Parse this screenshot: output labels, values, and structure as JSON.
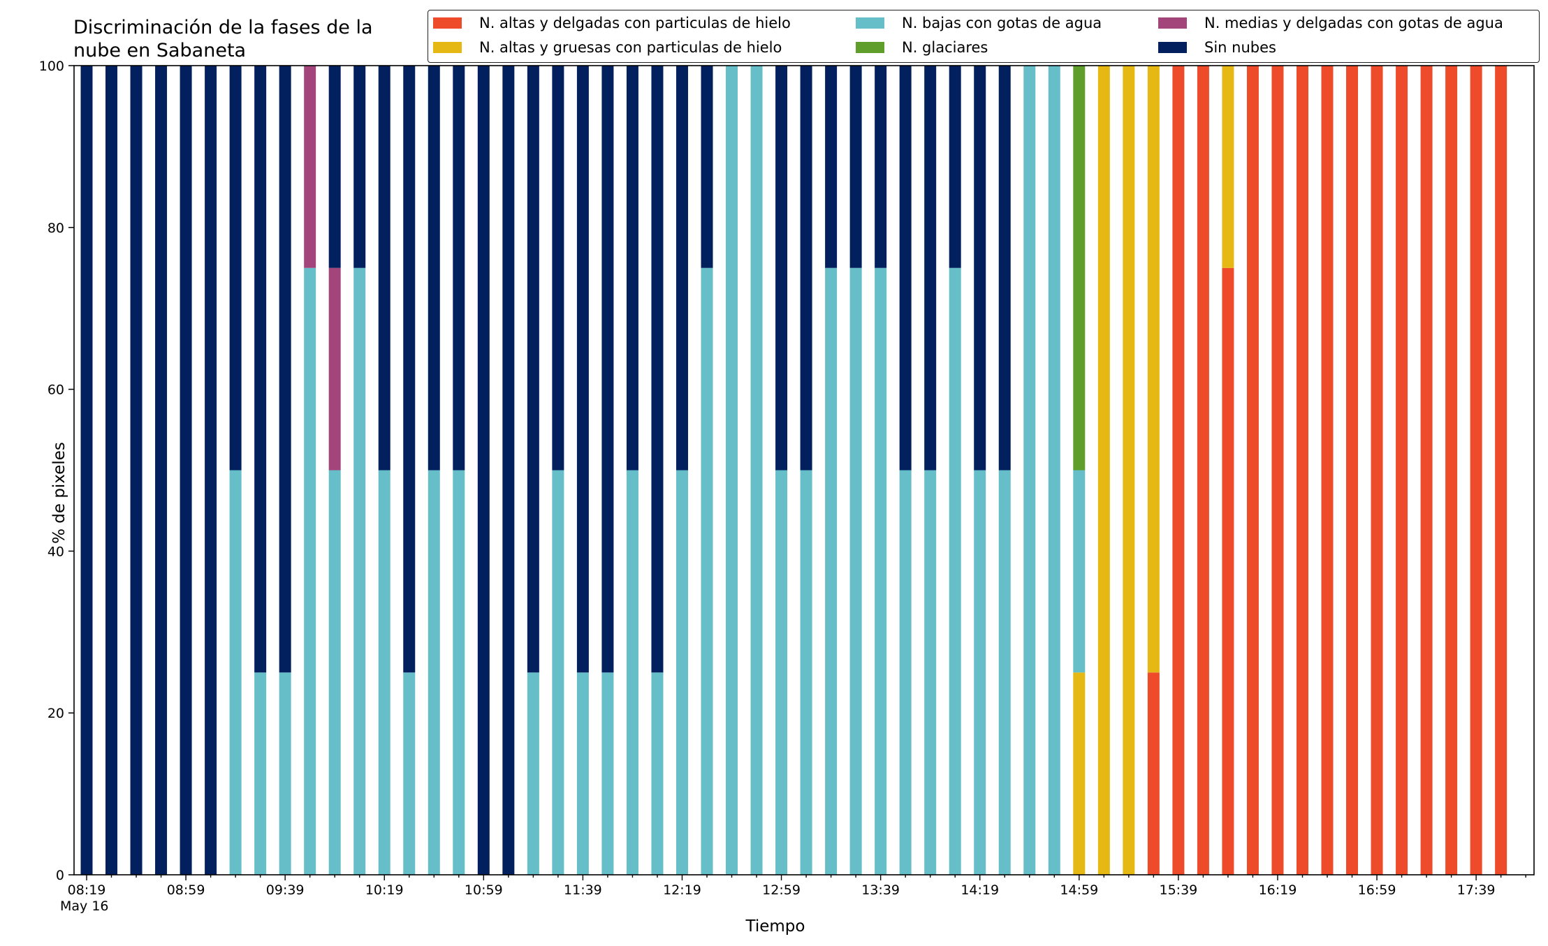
{
  "chart_data": {
    "type": "bar",
    "stacked": true,
    "title": "Discriminación de la fases de la nube en Sabaneta",
    "title_lines": [
      "Discriminación de la fases de la",
      "nube en Sabaneta"
    ],
    "xlabel": "Tiempo",
    "ylabel": "% de pixeles",
    "ylim": [
      0,
      100
    ],
    "yticks": [
      0,
      20,
      40,
      60,
      80,
      100
    ],
    "grid": false,
    "legend_position": "top-right",
    "x_start": "08:19",
    "x_step_minutes": 10,
    "x_tick_labels": [
      "08:19",
      "08:59",
      "09:39",
      "10:19",
      "10:59",
      "11:39",
      "12:19",
      "12:59",
      "13:39",
      "14:19",
      "14:59",
      "15:39",
      "16:19",
      "16:59",
      "17:39"
    ],
    "x_tick_sublabel": "May 16",
    "categories": [
      "08:19",
      "08:29",
      "08:39",
      "08:49",
      "08:59",
      "09:09",
      "09:19",
      "09:29",
      "09:39",
      "09:49",
      "09:59",
      "10:09",
      "10:19",
      "10:29",
      "10:39",
      "10:49",
      "10:59",
      "11:09",
      "11:19",
      "11:29",
      "11:39",
      "11:49",
      "11:59",
      "12:09",
      "12:19",
      "12:29",
      "12:39",
      "12:49",
      "12:59",
      "13:09",
      "13:19",
      "13:29",
      "13:39",
      "13:49",
      "13:59",
      "14:09",
      "14:19",
      "14:29",
      "14:39",
      "14:49",
      "14:59",
      "15:09",
      "15:19",
      "15:29",
      "15:39",
      "15:49",
      "15:59",
      "16:09",
      "16:19",
      "16:29",
      "16:39",
      "16:49",
      "16:59",
      "17:09",
      "17:19",
      "17:29",
      "17:39",
      "17:49"
    ],
    "series": [
      {
        "name": "N. altas y delgadas con particulas de hielo",
        "color": "#ee4b2b",
        "values": [
          0,
          0,
          0,
          0,
          0,
          0,
          0,
          0,
          0,
          0,
          0,
          0,
          0,
          0,
          0,
          0,
          0,
          0,
          0,
          0,
          0,
          0,
          0,
          0,
          0,
          0,
          0,
          0,
          0,
          0,
          0,
          0,
          0,
          0,
          0,
          0,
          0,
          0,
          0,
          0,
          0,
          0,
          0,
          25,
          100,
          100,
          75,
          100,
          100,
          100,
          100,
          100,
          100,
          100,
          100,
          100,
          100,
          100
        ]
      },
      {
        "name": "N. altas y gruesas con particulas de hielo",
        "color": "#e5b814",
        "values": [
          0,
          0,
          0,
          0,
          0,
          0,
          0,
          0,
          0,
          0,
          0,
          0,
          0,
          0,
          0,
          0,
          0,
          0,
          0,
          0,
          0,
          0,
          0,
          0,
          0,
          0,
          0,
          0,
          0,
          0,
          0,
          0,
          0,
          0,
          0,
          0,
          0,
          0,
          0,
          0,
          25,
          100,
          100,
          75,
          0,
          0,
          25,
          0,
          0,
          0,
          0,
          0,
          0,
          0,
          0,
          0,
          0,
          0
        ]
      },
      {
        "name": "N. bajas con gotas de agua",
        "color": "#66bec9",
        "values": [
          0,
          0,
          0,
          0,
          0,
          0,
          50,
          25,
          25,
          75,
          50,
          75,
          50,
          25,
          50,
          50,
          0,
          0,
          25,
          50,
          25,
          25,
          50,
          25,
          50,
          75,
          100,
          100,
          50,
          50,
          75,
          75,
          75,
          50,
          50,
          75,
          50,
          50,
          100,
          100,
          25,
          0,
          0,
          0,
          0,
          0,
          0,
          0,
          0,
          0,
          0,
          0,
          0,
          0,
          0,
          0,
          0,
          0
        ]
      },
      {
        "name": "N. glaciares",
        "color": "#5f9e2b",
        "values": [
          0,
          0,
          0,
          0,
          0,
          0,
          0,
          0,
          0,
          0,
          0,
          0,
          0,
          0,
          0,
          0,
          0,
          0,
          0,
          0,
          0,
          0,
          0,
          0,
          0,
          0,
          0,
          0,
          0,
          0,
          0,
          0,
          0,
          0,
          0,
          0,
          0,
          0,
          0,
          0,
          50,
          0,
          0,
          0,
          0,
          0,
          0,
          0,
          0,
          0,
          0,
          0,
          0,
          0,
          0,
          0,
          0,
          0
        ]
      },
      {
        "name": "N. medias y delgadas con gotas de agua",
        "color": "#a3457a",
        "values": [
          0,
          0,
          0,
          0,
          0,
          0,
          0,
          0,
          0,
          25,
          25,
          0,
          0,
          0,
          0,
          0,
          0,
          0,
          0,
          0,
          0,
          0,
          0,
          0,
          0,
          0,
          0,
          0,
          0,
          0,
          0,
          0,
          0,
          0,
          0,
          0,
          0,
          0,
          0,
          0,
          0,
          0,
          0,
          0,
          0,
          0,
          0,
          0,
          0,
          0,
          0,
          0,
          0,
          0,
          0,
          0,
          0,
          0
        ]
      },
      {
        "name": "Sin nubes",
        "color": "#03205e",
        "values": [
          100,
          100,
          100,
          100,
          100,
          100,
          50,
          75,
          75,
          0,
          25,
          25,
          50,
          75,
          50,
          50,
          100,
          100,
          75,
          50,
          75,
          75,
          50,
          75,
          50,
          25,
          0,
          0,
          50,
          50,
          25,
          25,
          25,
          50,
          50,
          25,
          50,
          50,
          0,
          0,
          0,
          0,
          0,
          0,
          0,
          0,
          0,
          0,
          0,
          0,
          0,
          0,
          0,
          0,
          0,
          0,
          0,
          0
        ]
      }
    ]
  }
}
